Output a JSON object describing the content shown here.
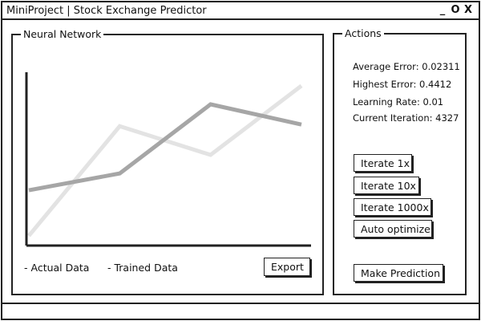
{
  "window": {
    "title": "MiniProject | Stock Exchange Predictor",
    "controls": [
      "_",
      "O",
      "X"
    ]
  },
  "neural_network": {
    "label": "Neural Network",
    "legend": {
      "actual": "- Actual Data",
      "trained": "- Trained Data"
    },
    "export_label": "Export"
  },
  "chart_data": {
    "type": "line",
    "title": "",
    "xlabel": "",
    "ylabel": "",
    "x": [
      0,
      1,
      2,
      3
    ],
    "xlim": [
      0,
      3
    ],
    "ylim": [
      0,
      1
    ],
    "grid": false,
    "series": [
      {
        "name": "Actual Data",
        "values": [
          0.02,
          0.67,
          0.5,
          0.91
        ],
        "color": "#e3e3e3"
      },
      {
        "name": "Trained Data",
        "values": [
          0.29,
          0.39,
          0.8,
          0.68
        ],
        "color": "#a6a6a6"
      }
    ]
  },
  "actions": {
    "label": "Actions",
    "stats": [
      {
        "label": "Average Error",
        "value": "0.02311"
      },
      {
        "label": "Highest Error",
        "value": "0.4412"
      },
      {
        "label": "Learning Rate",
        "value": "0.01"
      },
      {
        "label": "Current Iteration",
        "value": "4327"
      }
    ],
    "buttons": {
      "iterate_1x": "Iterate 1x",
      "iterate_10x": "Iterate 10x",
      "iterate_1000x": "Iterate 1000x",
      "auto_optimize": "Auto optimize",
      "make_prediction": "Make Prediction"
    }
  }
}
